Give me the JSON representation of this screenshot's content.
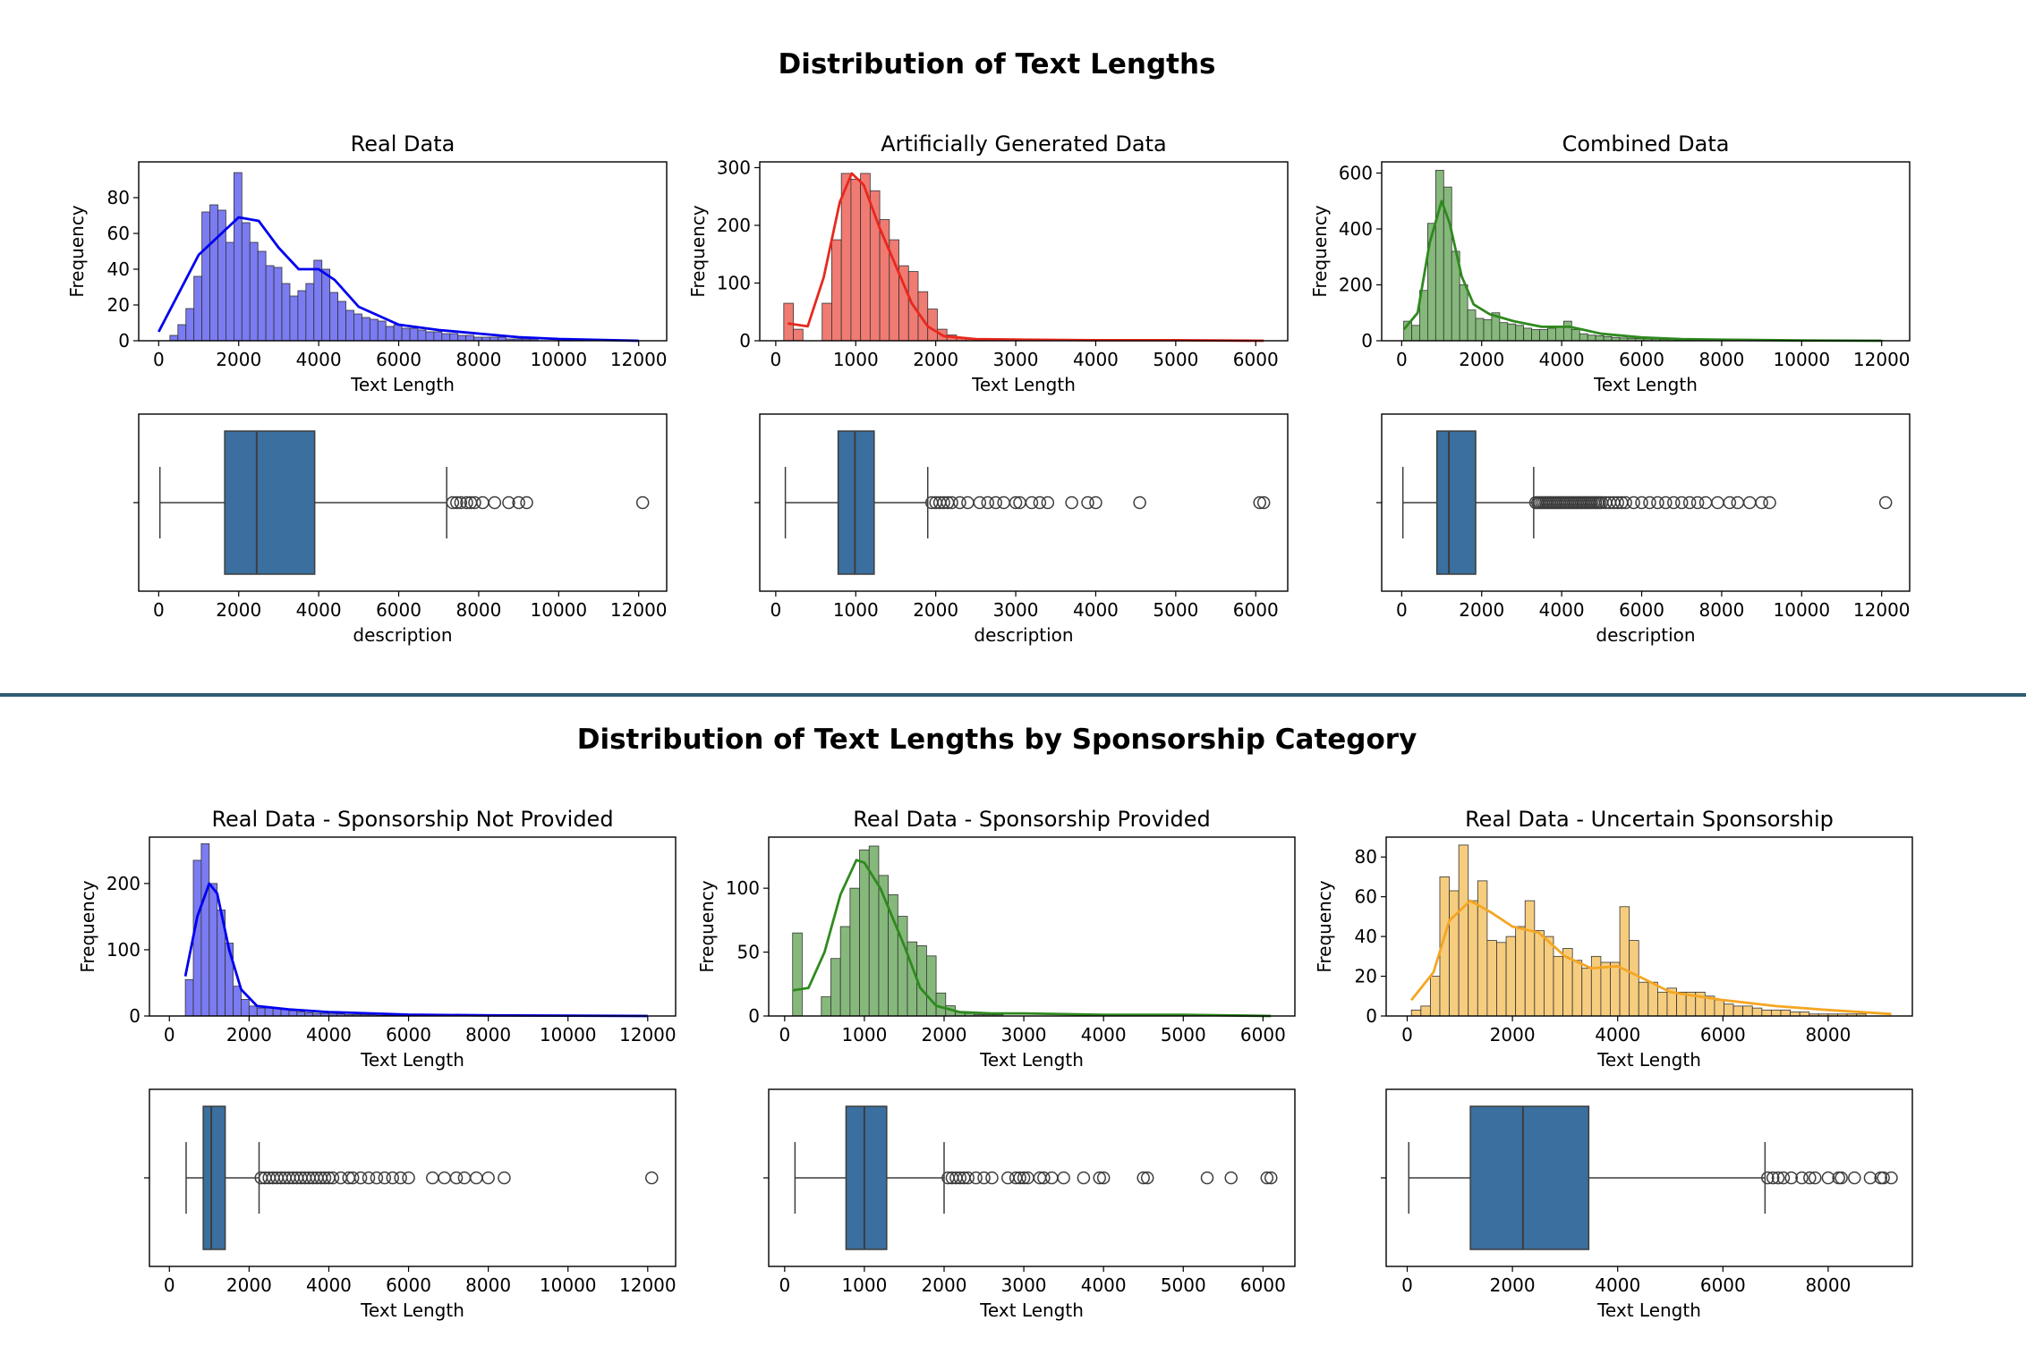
{
  "titles": {
    "top": "Distribution of Text Lengths",
    "bottom": "Distribution of Text Lengths by Sponsorship Category"
  },
  "colors": {
    "real": "#0000ee",
    "artificial": "#e8281e",
    "combined": "#2f8a1f",
    "uncertain": "#f4a623",
    "box": "#3a6f9f",
    "divider": "#2e5c73"
  },
  "chart_data": [
    {
      "type": "histogram",
      "title": "Real Data",
      "xlabel": "Text Length",
      "ylabel": "Frequency",
      "xlim": [
        -500,
        12700
      ],
      "ylim": [
        0,
        100
      ],
      "xticks": [
        0,
        2000,
        4000,
        6000,
        8000,
        10000,
        12000
      ],
      "yticks": [
        0,
        20,
        40,
        60,
        80
      ],
      "kde": true,
      "bins": {
        "start": 280,
        "width": 200,
        "counts": [
          3,
          9,
          18,
          36,
          72,
          76,
          73,
          55,
          94,
          66,
          55,
          50,
          42,
          41,
          32,
          25,
          28,
          32,
          45,
          40,
          27,
          22,
          17,
          15,
          13,
          12,
          11,
          8,
          9,
          7,
          7,
          6,
          5,
          5,
          4,
          4,
          3,
          3,
          2,
          2,
          2,
          2,
          1,
          1,
          1,
          1
        ]
      },
      "kde_points": [
        [
          0,
          5
        ],
        [
          1000,
          48
        ],
        [
          2000,
          69
        ],
        [
          2500,
          67
        ],
        [
          3000,
          52
        ],
        [
          3500,
          40
        ],
        [
          4000,
          40
        ],
        [
          4400,
          34
        ],
        [
          5000,
          19
        ],
        [
          6000,
          9
        ],
        [
          7000,
          6
        ],
        [
          8000,
          4
        ],
        [
          9000,
          2
        ],
        [
          10000,
          1
        ],
        [
          12000,
          0
        ]
      ]
    },
    {
      "type": "boxplot",
      "xlabel": "description",
      "xlim": [
        -500,
        12700
      ],
      "xticks": [
        0,
        2000,
        4000,
        6000,
        8000,
        10000,
        12000
      ],
      "whisker_low": 30,
      "q1": 1650,
      "median": 2450,
      "q3": 3900,
      "whisker_high": 7200,
      "outliers": [
        7350,
        7450,
        7550,
        7700,
        7800,
        7900,
        8100,
        8400,
        8750,
        9000,
        9200,
        12100
      ]
    },
    {
      "type": "histogram",
      "title": "Artificially Generated Data",
      "xlabel": "Text Length",
      "ylabel": "Frequency",
      "xlim": [
        -200,
        6400
      ],
      "ylim": [
        0,
        310
      ],
      "xticks": [
        0,
        1000,
        2000,
        3000,
        4000,
        5000,
        6000
      ],
      "yticks": [
        0,
        100,
        200,
        300
      ],
      "kde": true,
      "bins": {
        "start": 100,
        "width": 120,
        "counts": [
          65,
          20,
          0,
          0,
          65,
          175,
          290,
          280,
          290,
          260,
          210,
          175,
          130,
          120,
          85,
          55,
          20,
          10,
          5,
          3,
          2,
          1,
          1,
          1
        ]
      },
      "kde_points": [
        [
          150,
          30
        ],
        [
          400,
          25
        ],
        [
          600,
          110
        ],
        [
          800,
          240
        ],
        [
          950,
          290
        ],
        [
          1100,
          270
        ],
        [
          1300,
          195
        ],
        [
          1500,
          130
        ],
        [
          1700,
          65
        ],
        [
          1900,
          25
        ],
        [
          2100,
          8
        ],
        [
          2500,
          3
        ],
        [
          3000,
          2
        ],
        [
          4000,
          1
        ],
        [
          5000,
          1
        ],
        [
          6100,
          0
        ]
      ]
    },
    {
      "type": "boxplot",
      "xlabel": "description",
      "xlim": [
        -200,
        6400
      ],
      "xticks": [
        0,
        1000,
        2000,
        3000,
        4000,
        5000,
        6000
      ],
      "whisker_low": 120,
      "q1": 780,
      "median": 990,
      "q3": 1230,
      "whisker_high": 1900,
      "outliers": [
        1950,
        2000,
        2050,
        2100,
        2150,
        2200,
        2300,
        2400,
        2550,
        2650,
        2750,
        2850,
        3000,
        3050,
        3200,
        3300,
        3400,
        3700,
        3900,
        4000,
        4550,
        6050,
        6100
      ]
    },
    {
      "type": "histogram",
      "title": "Combined Data",
      "xlabel": "Text Length",
      "ylabel": "Frequency",
      "xlim": [
        -500,
        12700
      ],
      "ylim": [
        0,
        640
      ],
      "xticks": [
        0,
        2000,
        4000,
        6000,
        8000,
        10000,
        12000
      ],
      "yticks": [
        0,
        200,
        400,
        600
      ],
      "kde": true,
      "bins": {
        "start": 50,
        "width": 200,
        "counts": [
          70,
          55,
          180,
          420,
          610,
          550,
          320,
          200,
          110,
          80,
          75,
          100,
          65,
          60,
          55,
          45,
          40,
          40,
          45,
          50,
          70,
          40,
          25,
          20,
          18,
          15,
          12,
          10,
          9,
          8,
          7,
          6,
          5,
          5,
          4,
          4,
          3,
          3,
          2,
          2,
          2,
          2,
          1,
          1,
          1,
          1,
          1,
          1,
          1,
          1,
          1,
          1,
          1,
          1,
          1,
          1,
          1,
          1,
          1,
          1
        ]
      },
      "kde_points": [
        [
          50,
          40
        ],
        [
          400,
          100
        ],
        [
          700,
          350
        ],
        [
          1000,
          500
        ],
        [
          1200,
          420
        ],
        [
          1500,
          230
        ],
        [
          1800,
          130
        ],
        [
          2200,
          95
        ],
        [
          2800,
          70
        ],
        [
          3500,
          50
        ],
        [
          4200,
          50
        ],
        [
          5000,
          25
        ],
        [
          6000,
          12
        ],
        [
          7000,
          6
        ],
        [
          8000,
          4
        ],
        [
          10000,
          1
        ],
        [
          12000,
          0
        ]
      ]
    },
    {
      "type": "boxplot",
      "xlabel": "description",
      "xlim": [
        -500,
        12700
      ],
      "xticks": [
        0,
        2000,
        4000,
        6000,
        8000,
        10000,
        12000
      ],
      "whisker_low": 30,
      "q1": 880,
      "median": 1180,
      "q3": 1850,
      "whisker_high": 3300,
      "outliers": [
        3350,
        3400,
        3450,
        3500,
        3550,
        3600,
        3650,
        3700,
        3750,
        3800,
        3850,
        3900,
        3950,
        4000,
        4050,
        4100,
        4150,
        4200,
        4250,
        4300,
        4350,
        4400,
        4450,
        4500,
        4550,
        4600,
        4650,
        4700,
        4750,
        4800,
        4850,
        4900,
        4950,
        5000,
        5100,
        5200,
        5300,
        5400,
        5500,
        5600,
        5800,
        6000,
        6200,
        6400,
        6600,
        6800,
        7000,
        7200,
        7400,
        7600,
        7900,
        8200,
        8400,
        8700,
        9000,
        9200,
        12100
      ]
    },
    {
      "type": "histogram",
      "title": "Real Data - Sponsorship Not Provided",
      "xlabel": "Text Length",
      "ylabel": "Frequency",
      "xlim": [
        -500,
        12700
      ],
      "ylim": [
        0,
        270
      ],
      "xticks": [
        0,
        2000,
        4000,
        6000,
        8000,
        10000,
        12000
      ],
      "yticks": [
        0,
        100,
        200
      ],
      "kde": true,
      "bins": {
        "start": 400,
        "width": 200,
        "counts": [
          55,
          235,
          260,
          200,
          160,
          110,
          45,
          25,
          15,
          12,
          12,
          12,
          10,
          8,
          6,
          5,
          4,
          4,
          3,
          3,
          2,
          2,
          2,
          2,
          1,
          1,
          1,
          1,
          1,
          1,
          1,
          1,
          1,
          1,
          1,
          1
        ]
      },
      "kde_points": [
        [
          400,
          60
        ],
        [
          700,
          150
        ],
        [
          1000,
          200
        ],
        [
          1200,
          185
        ],
        [
          1500,
          100
        ],
        [
          1800,
          40
        ],
        [
          2200,
          15
        ],
        [
          3000,
          10
        ],
        [
          4000,
          6
        ],
        [
          5000,
          4
        ],
        [
          6000,
          2
        ],
        [
          8000,
          1
        ],
        [
          12000,
          0
        ]
      ]
    },
    {
      "type": "boxplot",
      "xlabel": "Text Length",
      "xlim": [
        -500,
        12700
      ],
      "xticks": [
        0,
        2000,
        4000,
        6000,
        8000,
        10000,
        12000
      ],
      "whisker_low": 420,
      "q1": 850,
      "median": 1050,
      "q3": 1400,
      "whisker_high": 2250,
      "outliers": [
        2300,
        2400,
        2500,
        2600,
        2700,
        2800,
        2900,
        3000,
        3100,
        3200,
        3300,
        3400,
        3500,
        3600,
        3700,
        3800,
        3900,
        4000,
        4100,
        4300,
        4500,
        4600,
        4800,
        5000,
        5200,
        5400,
        5600,
        5800,
        6000,
        6600,
        6900,
        7200,
        7400,
        7700,
        8000,
        8400,
        12100
      ]
    },
    {
      "type": "histogram",
      "title": "Real Data - Sponsorship Provided",
      "xlabel": "Text Length",
      "ylabel": "Frequency",
      "xlim": [
        -200,
        6400
      ],
      "ylim": [
        0,
        140
      ],
      "xticks": [
        0,
        1000,
        2000,
        3000,
        4000,
        5000,
        6000
      ],
      "yticks": [
        0,
        50,
        100
      ],
      "kde": true,
      "bins": {
        "start": 100,
        "width": 120,
        "counts": [
          65,
          0,
          0,
          15,
          45,
          70,
          100,
          130,
          133,
          110,
          95,
          78,
          58,
          55,
          47,
          18,
          8,
          3,
          2,
          1,
          1,
          1
        ]
      },
      "kde_points": [
        [
          100,
          20
        ],
        [
          300,
          22
        ],
        [
          500,
          50
        ],
        [
          700,
          95
        ],
        [
          900,
          122
        ],
        [
          1000,
          120
        ],
        [
          1200,
          100
        ],
        [
          1500,
          55
        ],
        [
          1700,
          22
        ],
        [
          1900,
          8
        ],
        [
          2200,
          3
        ],
        [
          2600,
          2
        ],
        [
          3000,
          2
        ],
        [
          4000,
          1
        ],
        [
          5000,
          1
        ],
        [
          6100,
          0
        ]
      ]
    },
    {
      "type": "boxplot",
      "xlabel": "Text Length",
      "xlim": [
        -200,
        6400
      ],
      "xticks": [
        0,
        1000,
        2000,
        3000,
        4000,
        5000,
        6000
      ],
      "whisker_low": 130,
      "q1": 770,
      "median": 1000,
      "q3": 1280,
      "whisker_high": 2000,
      "outliers": [
        2050,
        2100,
        2150,
        2200,
        2250,
        2300,
        2400,
        2500,
        2600,
        2800,
        2900,
        2950,
        3000,
        3050,
        3200,
        3250,
        3350,
        3500,
        3750,
        3950,
        4000,
        4500,
        4550,
        5300,
        5600,
        6050,
        6100
      ]
    },
    {
      "type": "histogram",
      "title": "Real Data - Uncertain Sponsorship",
      "xlabel": "Text Length",
      "ylabel": "Frequency",
      "xlim": [
        -400,
        9600
      ],
      "ylim": [
        0,
        90
      ],
      "xticks": [
        0,
        2000,
        4000,
        6000,
        8000
      ],
      "yticks": [
        0,
        20,
        40,
        60,
        80
      ],
      "kde": true,
      "bins": {
        "start": 80,
        "width": 180,
        "counts": [
          3,
          5,
          20,
          70,
          63,
          86,
          58,
          68,
          38,
          37,
          40,
          45,
          58,
          43,
          40,
          30,
          34,
          28,
          24,
          30,
          27,
          27,
          55,
          38,
          17,
          17,
          12,
          14,
          12,
          12,
          12,
          10,
          8,
          6,
          5,
          5,
          4,
          3,
          3,
          3,
          2,
          2,
          1,
          1,
          1,
          1,
          1,
          1
        ]
      },
      "kde_points": [
        [
          80,
          8
        ],
        [
          500,
          22
        ],
        [
          800,
          48
        ],
        [
          1200,
          58
        ],
        [
          1600,
          52
        ],
        [
          2000,
          45
        ],
        [
          2500,
          42
        ],
        [
          3000,
          30
        ],
        [
          3500,
          24
        ],
        [
          4000,
          25
        ],
        [
          4400,
          20
        ],
        [
          5000,
          12
        ],
        [
          6000,
          8
        ],
        [
          7000,
          5
        ],
        [
          8000,
          3
        ],
        [
          9200,
          1
        ]
      ]
    },
    {
      "type": "boxplot",
      "xlabel": "Text Length",
      "xlim": [
        -400,
        9600
      ],
      "xticks": [
        0,
        2000,
        4000,
        6000,
        8000
      ],
      "whisker_low": 30,
      "q1": 1200,
      "median": 2200,
      "q3": 3450,
      "whisker_high": 6800,
      "outliers": [
        6850,
        6950,
        7050,
        7150,
        7300,
        7500,
        7650,
        7750,
        8000,
        8200,
        8250,
        8500,
        8800,
        9000,
        9050,
        9200
      ]
    }
  ]
}
